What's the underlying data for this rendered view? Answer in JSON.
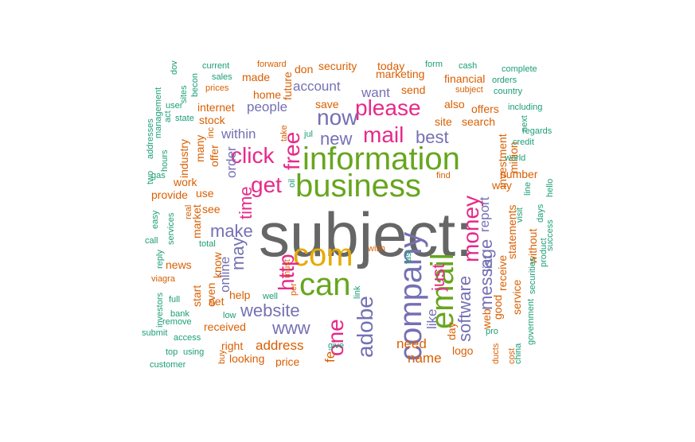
{
  "colors": {
    "gray": "#666666",
    "green": "#66a61e",
    "orange": "#d95f02",
    "purple": "#7570b3",
    "pink": "#e7298a",
    "gold": "#e6ab02",
    "teal": "#1b9e77"
  },
  "words": [
    {
      "text": "subject:",
      "size": "xxl",
      "color": "gray",
      "orient": "h"
    },
    {
      "text": "business",
      "size": "xl",
      "color": "green",
      "orient": "h"
    },
    {
      "text": "information",
      "size": "xl",
      "color": "green",
      "orient": "h"
    },
    {
      "text": "com",
      "size": "xl",
      "color": "gold",
      "orient": "h"
    },
    {
      "text": "company",
      "size": "xl",
      "color": "purple",
      "orient": "v"
    },
    {
      "text": "email",
      "size": "xl",
      "color": "green",
      "orient": "v"
    },
    {
      "text": "can",
      "size": "xl",
      "color": "green",
      "orient": "h"
    },
    {
      "text": "money",
      "size": "l",
      "color": "pink",
      "orient": "v"
    },
    {
      "text": "please",
      "size": "l",
      "color": "pink",
      "orient": "h"
    },
    {
      "text": "now",
      "size": "l",
      "color": "purple",
      "orient": "h"
    },
    {
      "text": "mail",
      "size": "l",
      "color": "pink",
      "orient": "h"
    },
    {
      "text": "free",
      "size": "l",
      "color": "pink",
      "orient": "v"
    },
    {
      "text": "click",
      "size": "l",
      "color": "pink",
      "orient": "h"
    },
    {
      "text": "get",
      "size": "l",
      "color": "pink",
      "orient": "h"
    },
    {
      "text": "http",
      "size": "l",
      "color": "pink",
      "orient": "v"
    },
    {
      "text": "one",
      "size": "l",
      "color": "pink",
      "orient": "v"
    },
    {
      "text": "adobe",
      "size": "l",
      "color": "purple",
      "orient": "v"
    },
    {
      "text": "new",
      "size": "m",
      "color": "purple",
      "orient": "h"
    },
    {
      "text": "best",
      "size": "m",
      "color": "purple",
      "orient": "h"
    },
    {
      "text": "just",
      "size": "m",
      "color": "pink",
      "orient": "v"
    },
    {
      "text": "time",
      "size": "m",
      "color": "pink",
      "orient": "v"
    },
    {
      "text": "may",
      "size": "m",
      "color": "purple",
      "orient": "v"
    },
    {
      "text": "make",
      "size": "m",
      "color": "purple",
      "orient": "h"
    },
    {
      "text": "website",
      "size": "m",
      "color": "purple",
      "orient": "h"
    },
    {
      "text": "www",
      "size": "m",
      "color": "purple",
      "orient": "h"
    },
    {
      "text": "software",
      "size": "m",
      "color": "purple",
      "orient": "v"
    },
    {
      "text": "message",
      "size": "m",
      "color": "purple",
      "orient": "v"
    },
    {
      "text": "report",
      "size": "s",
      "color": "purple",
      "orient": "v"
    },
    {
      "text": "list",
      "size": "s",
      "color": "purple",
      "orient": "v"
    },
    {
      "text": "account",
      "size": "s",
      "color": "purple",
      "orient": "h"
    },
    {
      "text": "want",
      "size": "s",
      "color": "purple",
      "orient": "h"
    },
    {
      "text": "people",
      "size": "s",
      "color": "purple",
      "orient": "h"
    },
    {
      "text": "within",
      "size": "s",
      "color": "purple",
      "orient": "h"
    },
    {
      "text": "order",
      "size": "s",
      "color": "purple",
      "orient": "v"
    },
    {
      "text": "online",
      "size": "s",
      "color": "purple",
      "orient": "v"
    },
    {
      "text": "address",
      "size": "s",
      "color": "orange",
      "orient": "h"
    },
    {
      "text": "need",
      "size": "s",
      "color": "orange",
      "orient": "h"
    },
    {
      "text": "name",
      "size": "s",
      "color": "orange",
      "orient": "h"
    },
    {
      "text": "like",
      "size": "s",
      "color": "purple",
      "orient": "v"
    },
    {
      "text": "security",
      "size": "xs",
      "color": "orange",
      "orient": "h"
    },
    {
      "text": "today",
      "size": "xs",
      "color": "orange",
      "orient": "h"
    },
    {
      "text": "marketing",
      "size": "xs",
      "color": "orange",
      "orient": "h"
    },
    {
      "text": "send",
      "size": "xs",
      "color": "orange",
      "orient": "h"
    },
    {
      "text": "save",
      "size": "xs",
      "color": "orange",
      "orient": "h"
    },
    {
      "text": "home",
      "size": "xs",
      "color": "orange",
      "orient": "h"
    },
    {
      "text": "made",
      "size": "xs",
      "color": "orange",
      "orient": "h"
    },
    {
      "text": "forward",
      "size": "xxs",
      "color": "orange",
      "orient": "h"
    },
    {
      "text": "don",
      "size": "xs",
      "color": "orange",
      "orient": "h"
    },
    {
      "text": "future",
      "size": "xs",
      "color": "orange",
      "orient": "v"
    },
    {
      "text": "internet",
      "size": "xs",
      "color": "orange",
      "orient": "h"
    },
    {
      "text": "stock",
      "size": "xs",
      "color": "orange",
      "orient": "h"
    },
    {
      "text": "financial",
      "size": "xs",
      "color": "orange",
      "orient": "h"
    },
    {
      "text": "subject",
      "size": "xxs",
      "color": "orange",
      "orient": "h"
    },
    {
      "text": "also",
      "size": "xs",
      "color": "orange",
      "orient": "h"
    },
    {
      "text": "offers",
      "size": "xs",
      "color": "orange",
      "orient": "h"
    },
    {
      "text": "site",
      "size": "xs",
      "color": "orange",
      "orient": "h"
    },
    {
      "text": "search",
      "size": "xs",
      "color": "orange",
      "orient": "h"
    },
    {
      "text": "investment",
      "size": "xs",
      "color": "orange",
      "orient": "v"
    },
    {
      "text": "million",
      "size": "xs",
      "color": "orange",
      "orient": "v"
    },
    {
      "text": "number",
      "size": "xs",
      "color": "orange",
      "orient": "h"
    },
    {
      "text": "way",
      "size": "xs",
      "color": "orange",
      "orient": "h"
    },
    {
      "text": "statements",
      "size": "xs",
      "color": "orange",
      "orient": "v"
    },
    {
      "text": "receive",
      "size": "xs",
      "color": "orange",
      "orient": "v"
    },
    {
      "text": "wish",
      "size": "xxs",
      "color": "orange",
      "orient": "h"
    },
    {
      "text": "help",
      "size": "xs",
      "color": "orange",
      "orient": "h"
    },
    {
      "text": "received",
      "size": "xs",
      "color": "orange",
      "orient": "h"
    },
    {
      "text": "right",
      "size": "xs",
      "color": "orange",
      "orient": "h"
    },
    {
      "text": "looking",
      "size": "xs",
      "color": "orange",
      "orient": "h"
    },
    {
      "text": "price",
      "size": "xs",
      "color": "orange",
      "orient": "h"
    },
    {
      "text": "net",
      "size": "xs",
      "color": "orange",
      "orient": "h"
    },
    {
      "text": "know",
      "size": "xs",
      "color": "orange",
      "orient": "v"
    },
    {
      "text": "work",
      "size": "xs",
      "color": "orange",
      "orient": "h"
    },
    {
      "text": "see",
      "size": "xs",
      "color": "orange",
      "orient": "h"
    },
    {
      "text": "use",
      "size": "xs",
      "color": "orange",
      "orient": "h"
    },
    {
      "text": "provide",
      "size": "xs",
      "color": "orange",
      "orient": "h"
    },
    {
      "text": "market",
      "size": "xs",
      "color": "orange",
      "orient": "v"
    },
    {
      "text": "offer",
      "size": "xs",
      "color": "orange",
      "orient": "v"
    },
    {
      "text": "industry",
      "size": "xs",
      "color": "orange",
      "orient": "v"
    },
    {
      "text": "many",
      "size": "xs",
      "color": "orange",
      "orient": "v"
    },
    {
      "text": "news",
      "size": "xs",
      "color": "orange",
      "orient": "h"
    },
    {
      "text": "viagra",
      "size": "xxs",
      "color": "orange",
      "orient": "h"
    },
    {
      "text": "logo",
      "size": "xs",
      "color": "orange",
      "orient": "h"
    },
    {
      "text": "day",
      "size": "xs",
      "color": "orange",
      "orient": "v"
    },
    {
      "text": "web",
      "size": "xs",
      "color": "orange",
      "orient": "v"
    },
    {
      "text": "good",
      "size": "xs",
      "color": "orange",
      "orient": "v"
    },
    {
      "text": "service",
      "size": "xs",
      "color": "orange",
      "orient": "v"
    },
    {
      "text": "without",
      "size": "xs",
      "color": "orange",
      "orient": "v"
    },
    {
      "text": "even",
      "size": "xs",
      "color": "orange",
      "orient": "v"
    },
    {
      "text": "start",
      "size": "xs",
      "color": "orange",
      "orient": "v"
    },
    {
      "text": "fe",
      "size": "s",
      "color": "orange",
      "orient": "v"
    },
    {
      "text": "cost",
      "size": "xxs",
      "color": "orange",
      "orient": "v"
    },
    {
      "text": "ducts",
      "size": "xxs",
      "color": "orange",
      "orient": "v"
    },
    {
      "text": "buy",
      "size": "xxs",
      "color": "orange",
      "orient": "v"
    },
    {
      "text": "real",
      "size": "xxs",
      "color": "orange",
      "orient": "v"
    },
    {
      "text": "prices",
      "size": "xxs",
      "color": "orange",
      "orient": "h"
    },
    {
      "text": "take",
      "size": "xxs",
      "color": "orange",
      "orient": "v"
    },
    {
      "text": "inc",
      "size": "xxs",
      "color": "orange",
      "orient": "v"
    },
    {
      "text": "find",
      "size": "xxs",
      "color": "orange",
      "orient": "h"
    },
    {
      "text": "must",
      "size": "xxs",
      "color": "orange",
      "orient": "v"
    },
    {
      "text": "per",
      "size": "xxs",
      "color": "orange",
      "orient": "v"
    },
    {
      "text": "cash",
      "size": "xxs",
      "color": "teal",
      "orient": "h"
    },
    {
      "text": "form",
      "size": "xxs",
      "color": "teal",
      "orient": "h"
    },
    {
      "text": "complete",
      "size": "xxs",
      "color": "teal",
      "orient": "h"
    },
    {
      "text": "orders",
      "size": "xxs",
      "color": "teal",
      "orient": "h"
    },
    {
      "text": "country",
      "size": "xxs",
      "color": "teal",
      "orient": "h"
    },
    {
      "text": "including",
      "size": "xxs",
      "color": "teal",
      "orient": "h"
    },
    {
      "text": "regards",
      "size": "xxs",
      "color": "teal",
      "orient": "h"
    },
    {
      "text": "credit",
      "size": "xxs",
      "color": "teal",
      "orient": "h"
    },
    {
      "text": "world",
      "size": "xxs",
      "color": "teal",
      "orient": "h"
    },
    {
      "text": "next",
      "size": "xxs",
      "color": "teal",
      "orient": "v"
    },
    {
      "text": "line",
      "size": "xxs",
      "color": "teal",
      "orient": "v"
    },
    {
      "text": "hello",
      "size": "xxs",
      "color": "teal",
      "orient": "v"
    },
    {
      "text": "success",
      "size": "xxs",
      "color": "teal",
      "orient": "v"
    },
    {
      "text": "visit",
      "size": "xxs",
      "color": "teal",
      "orient": "v"
    },
    {
      "text": "days",
      "size": "xxs",
      "color": "teal",
      "orient": "v"
    },
    {
      "text": "product",
      "size": "xxs",
      "color": "teal",
      "orient": "v"
    },
    {
      "text": "securities",
      "size": "xxs",
      "color": "teal",
      "orient": "v"
    },
    {
      "text": "government",
      "size": "xxs",
      "color": "teal",
      "orient": "v"
    },
    {
      "text": "china",
      "size": "xxs",
      "color": "teal",
      "orient": "v"
    },
    {
      "text": "pro",
      "size": "xxs",
      "color": "teal",
      "orient": "h"
    },
    {
      "text": "current",
      "size": "xxs",
      "color": "teal",
      "orient": "h"
    },
    {
      "text": "sales",
      "size": "xxs",
      "color": "teal",
      "orient": "h"
    },
    {
      "text": "user",
      "size": "xxs",
      "color": "teal",
      "orient": "h"
    },
    {
      "text": "state",
      "size": "xxs",
      "color": "teal",
      "orient": "h"
    },
    {
      "text": "act",
      "size": "xxs",
      "color": "teal",
      "orient": "v"
    },
    {
      "text": "sites",
      "size": "xxs",
      "color": "teal",
      "orient": "v"
    },
    {
      "text": "becon",
      "size": "xxs",
      "color": "teal",
      "orient": "v"
    },
    {
      "text": "dov",
      "size": "xxs",
      "color": "teal",
      "orient": "v"
    },
    {
      "text": "management",
      "size": "xxs",
      "color": "teal",
      "orient": "v"
    },
    {
      "text": "hours",
      "size": "xxs",
      "color": "teal",
      "orient": "v"
    },
    {
      "text": "addresses",
      "size": "xxs",
      "color": "teal",
      "orient": "v"
    },
    {
      "text": "two",
      "size": "xxs",
      "color": "teal",
      "orient": "v"
    },
    {
      "text": "gas",
      "size": "xxs",
      "color": "teal",
      "orient": "h"
    },
    {
      "text": "jul",
      "size": "xxs",
      "color": "teal",
      "orient": "h"
    },
    {
      "text": "oil",
      "size": "xxs",
      "color": "teal",
      "orient": "v"
    },
    {
      "text": "easy",
      "size": "xxs",
      "color": "teal",
      "orient": "v"
    },
    {
      "text": "services",
      "size": "xxs",
      "color": "teal",
      "orient": "v"
    },
    {
      "text": "total",
      "size": "xxs",
      "color": "teal",
      "orient": "h"
    },
    {
      "text": "call",
      "size": "xxs",
      "color": "teal",
      "orient": "h"
    },
    {
      "text": "reply",
      "size": "xxs",
      "color": "teal",
      "orient": "v"
    },
    {
      "text": "fast",
      "size": "xxs",
      "color": "teal",
      "orient": "v"
    },
    {
      "text": "link",
      "size": "xxs",
      "color": "teal",
      "orient": "v"
    },
    {
      "text": "well",
      "size": "xxs",
      "color": "teal",
      "orient": "h"
    },
    {
      "text": "full",
      "size": "xxs",
      "color": "teal",
      "orient": "h"
    },
    {
      "text": "investors",
      "size": "xxs",
      "color": "teal",
      "orient": "v"
    },
    {
      "text": "bank",
      "size": "xxs",
      "color": "teal",
      "orient": "h"
    },
    {
      "text": "remove",
      "size": "xxs",
      "color": "teal",
      "orient": "h"
    },
    {
      "text": "low",
      "size": "xxs",
      "color": "teal",
      "orient": "h"
    },
    {
      "text": "submit",
      "size": "xxs",
      "color": "teal",
      "orient": "h"
    },
    {
      "text": "access",
      "size": "xxs",
      "color": "teal",
      "orient": "h"
    },
    {
      "text": "give",
      "size": "xxs",
      "color": "teal",
      "orient": "h"
    },
    {
      "text": "top",
      "size": "xxs",
      "color": "teal",
      "orient": "h"
    },
    {
      "text": "using",
      "size": "xxs",
      "color": "teal",
      "orient": "h"
    },
    {
      "text": "customer",
      "size": "xxs",
      "color": "teal",
      "orient": "h"
    }
  ]
}
